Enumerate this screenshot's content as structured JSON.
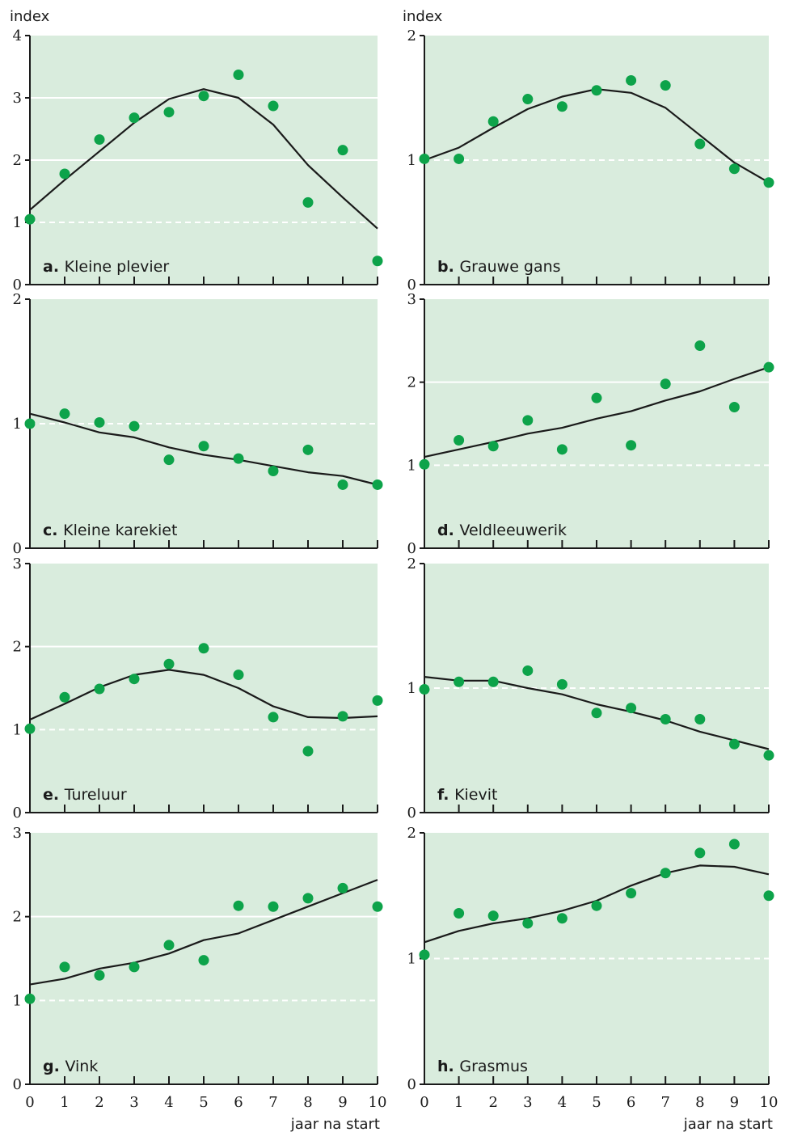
{
  "colors": {
    "panel_bg": "#d9ecdd",
    "point": "#0da34a",
    "line": "#1a1a1a",
    "grid": "#ffffff"
  },
  "y_axis_label": "index",
  "x_axis_label": "jaar na start",
  "chart_data": [
    {
      "type": "scatter",
      "letter": "a.",
      "title": "Kleine plevier",
      "ylim": [
        0,
        4
      ],
      "yticks": [
        0,
        1,
        2,
        3,
        4
      ],
      "xticks": [
        0,
        1,
        2,
        3,
        4,
        5,
        6,
        7,
        8,
        9,
        10
      ],
      "x": [
        0,
        1,
        2,
        3,
        4,
        5,
        6,
        7,
        8,
        9,
        10
      ],
      "points": [
        1.05,
        1.78,
        2.33,
        2.68,
        2.77,
        3.03,
        3.37,
        2.87,
        1.32,
        2.16,
        0.38
      ],
      "trend": [
        1.2,
        1.68,
        2.14,
        2.6,
        2.98,
        3.14,
        3.0,
        2.57,
        1.92,
        1.4,
        0.9
      ]
    },
    {
      "type": "scatter",
      "letter": "b.",
      "title": "Grauwe gans",
      "ylim": [
        0,
        2
      ],
      "yticks": [
        0,
        1,
        2
      ],
      "xticks": [
        0,
        1,
        2,
        3,
        4,
        5,
        6,
        7,
        8,
        9,
        10
      ],
      "x": [
        0,
        1,
        2,
        3,
        4,
        5,
        6,
        7,
        8,
        9,
        10
      ],
      "points": [
        1.01,
        1.01,
        1.31,
        1.49,
        1.43,
        1.56,
        1.64,
        1.6,
        1.13,
        0.93,
        0.82
      ],
      "trend": [
        1.0,
        1.1,
        1.26,
        1.41,
        1.51,
        1.57,
        1.54,
        1.42,
        1.2,
        0.98,
        0.82
      ]
    },
    {
      "type": "scatter",
      "letter": "c.",
      "title": "Kleine karekiet",
      "ylim": [
        0,
        2
      ],
      "yticks": [
        0,
        1,
        2
      ],
      "xticks": [
        0,
        1,
        2,
        3,
        4,
        5,
        6,
        7,
        8,
        9,
        10
      ],
      "x": [
        0,
        1,
        2,
        3,
        4,
        5,
        6,
        7,
        8,
        9,
        10
      ],
      "points": [
        1.0,
        1.08,
        1.01,
        0.98,
        0.71,
        0.82,
        0.72,
        0.62,
        0.79,
        0.51,
        0.51
      ],
      "trend": [
        1.08,
        1.01,
        0.93,
        0.89,
        0.81,
        0.75,
        0.71,
        0.66,
        0.61,
        0.58,
        0.51
      ]
    },
    {
      "type": "scatter",
      "letter": "d.",
      "title": "Veldleeuwerik",
      "ylim": [
        0,
        3
      ],
      "yticks": [
        0,
        1,
        2,
        3
      ],
      "xticks": [
        0,
        1,
        2,
        3,
        4,
        5,
        6,
        7,
        8,
        9,
        10
      ],
      "x": [
        0,
        1,
        2,
        3,
        4,
        5,
        6,
        7,
        8,
        9,
        10
      ],
      "points": [
        1.01,
        1.3,
        1.23,
        1.54,
        1.19,
        1.81,
        1.24,
        1.98,
        2.44,
        1.7,
        2.18
      ],
      "trend": [
        1.1,
        1.19,
        1.28,
        1.38,
        1.45,
        1.56,
        1.65,
        1.78,
        1.89,
        2.04,
        2.18
      ]
    },
    {
      "type": "scatter",
      "letter": "e.",
      "title": "Tureluur",
      "ylim": [
        0,
        3
      ],
      "yticks": [
        0,
        1,
        2,
        3
      ],
      "xticks": [
        0,
        1,
        2,
        3,
        4,
        5,
        6,
        7,
        8,
        9,
        10
      ],
      "x": [
        0,
        1,
        2,
        3,
        4,
        5,
        6,
        7,
        8,
        9,
        10
      ],
      "points": [
        1.01,
        1.39,
        1.49,
        1.61,
        1.79,
        1.98,
        1.66,
        1.15,
        0.74,
        1.16,
        1.35
      ],
      "trend": [
        1.12,
        1.31,
        1.51,
        1.66,
        1.72,
        1.66,
        1.5,
        1.28,
        1.15,
        1.14,
        1.16
      ]
    },
    {
      "type": "scatter",
      "letter": "f.",
      "title": "Kievit",
      "ylim": [
        0,
        2
      ],
      "yticks": [
        0,
        1,
        2
      ],
      "xticks": [
        0,
        1,
        2,
        3,
        4,
        5,
        6,
        7,
        8,
        9,
        10
      ],
      "x": [
        0,
        1,
        2,
        3,
        4,
        5,
        6,
        7,
        8,
        9,
        10
      ],
      "points": [
        0.99,
        1.05,
        1.05,
        1.14,
        1.03,
        0.8,
        0.84,
        0.75,
        0.75,
        0.55,
        0.46
      ],
      "trend": [
        1.09,
        1.06,
        1.06,
        1.0,
        0.95,
        0.87,
        0.81,
        0.74,
        0.65,
        0.58,
        0.51
      ]
    },
    {
      "type": "scatter",
      "letter": "g.",
      "title": "Vink",
      "ylim": [
        0,
        3
      ],
      "yticks": [
        0,
        1,
        2,
        3
      ],
      "xticks": [
        0,
        1,
        2,
        3,
        4,
        5,
        6,
        7,
        8,
        9,
        10
      ],
      "x": [
        0,
        1,
        2,
        3,
        4,
        5,
        6,
        7,
        8,
        9,
        10
      ],
      "points": [
        1.02,
        1.4,
        1.3,
        1.4,
        1.66,
        1.48,
        2.13,
        2.12,
        2.22,
        2.34,
        2.12
      ],
      "trend": [
        1.19,
        1.26,
        1.38,
        1.45,
        1.56,
        1.72,
        1.8,
        1.96,
        2.12,
        2.28,
        2.44
      ]
    },
    {
      "type": "scatter",
      "letter": "h.",
      "title": "Grasmus",
      "ylim": [
        0,
        2
      ],
      "yticks": [
        0,
        1,
        2
      ],
      "xticks": [
        0,
        1,
        2,
        3,
        4,
        5,
        6,
        7,
        8,
        9,
        10
      ],
      "x": [
        0,
        1,
        2,
        3,
        4,
        5,
        6,
        7,
        8,
        9,
        10
      ],
      "points": [
        1.03,
        1.36,
        1.34,
        1.28,
        1.32,
        1.42,
        1.52,
        1.68,
        1.84,
        1.91,
        1.5
      ],
      "trend": [
        1.13,
        1.22,
        1.28,
        1.32,
        1.38,
        1.46,
        1.58,
        1.68,
        1.74,
        1.73,
        1.67
      ]
    }
  ]
}
